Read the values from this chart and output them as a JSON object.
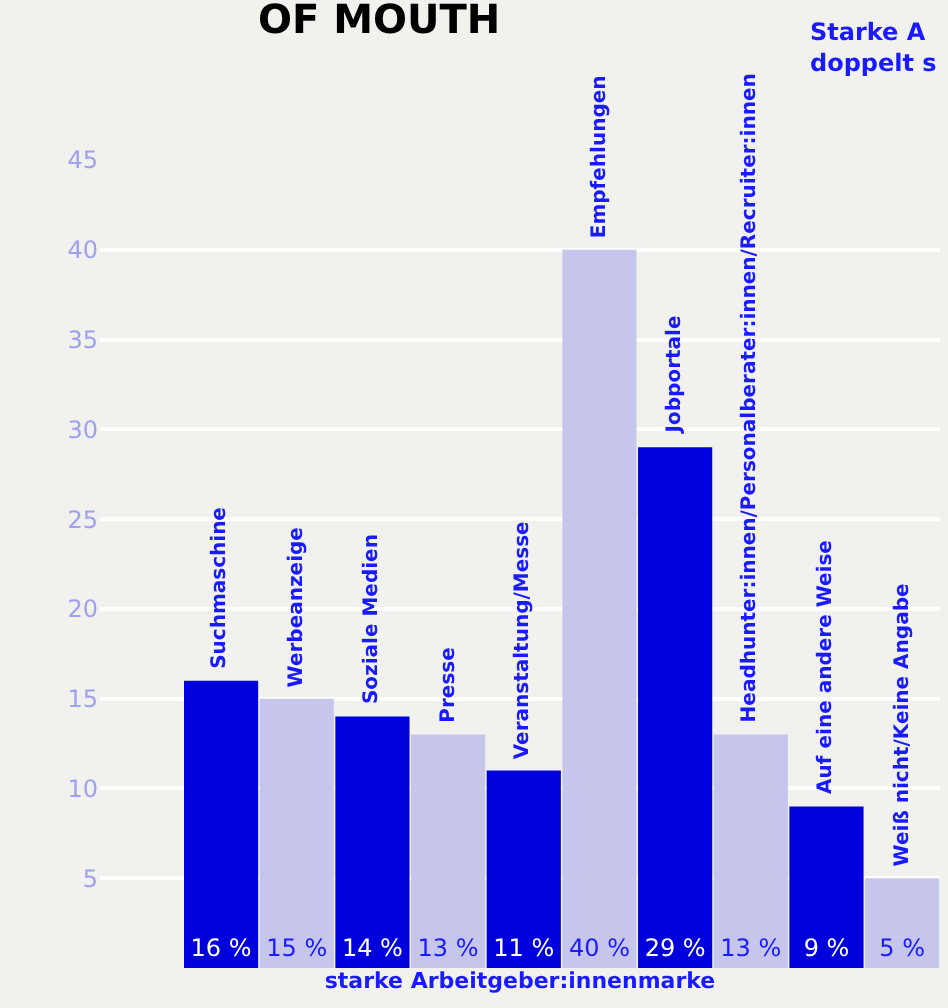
{
  "chart_data": {
    "type": "bar",
    "title": "OF MOUTH",
    "xlabel": "starke Arbeitgeber:innenmarke",
    "annotations": [
      "Starke A\ndoppelt s"
    ],
    "categories": [
      "Suchmaschine",
      "Werbeanzeige",
      "Soziale Medien",
      "Presse",
      "Veranstaltung/Messe",
      "Empfehlungen",
      "Jobportale",
      "Headhunter:innen/Personalberater:innen/Recruiter:innen",
      "Auf eine andere Weise",
      "Weiß nicht/Keine Angabe"
    ],
    "values": [
      16,
      15,
      14,
      13,
      11,
      40,
      29,
      13,
      9,
      5
    ],
    "colors": [
      "#0000dd",
      "#c6c6ec",
      "#0000dd",
      "#c6c6ec",
      "#0000dd",
      "#c6c6ec",
      "#0000dd",
      "#c6c6ec",
      "#0000dd",
      "#c6c6ec"
    ],
    "value_labels": [
      "16 %",
      "15 %",
      "14 %",
      "13 %",
      "11 %",
      "40 %",
      "29 %",
      "13 %",
      "9 %",
      "5 %"
    ],
    "ylim": [
      0,
      45
    ],
    "yticks": [
      5,
      10,
      15,
      20,
      25,
      30,
      35,
      40,
      45
    ],
    "grid": "y",
    "legend": false
  }
}
